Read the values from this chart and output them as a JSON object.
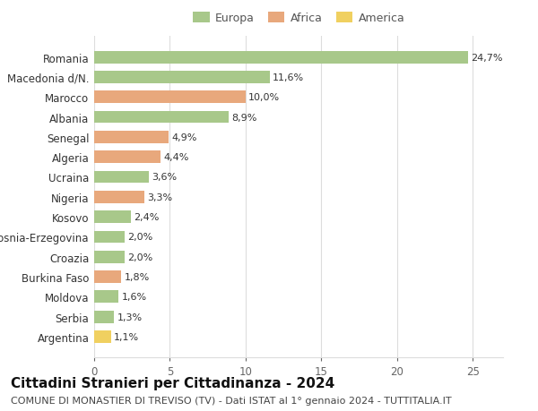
{
  "countries": [
    "Romania",
    "Macedonia d/N.",
    "Marocco",
    "Albania",
    "Senegal",
    "Algeria",
    "Ucraina",
    "Nigeria",
    "Kosovo",
    "Bosnia-Erzegovina",
    "Croazia",
    "Burkina Faso",
    "Moldova",
    "Serbia",
    "Argentina"
  ],
  "values": [
    24.7,
    11.6,
    10.0,
    8.9,
    4.9,
    4.4,
    3.6,
    3.3,
    2.4,
    2.0,
    2.0,
    1.8,
    1.6,
    1.3,
    1.1
  ],
  "labels": [
    "24,7%",
    "11,6%",
    "10,0%",
    "8,9%",
    "4,9%",
    "4,4%",
    "3,6%",
    "3,3%",
    "2,4%",
    "2,0%",
    "2,0%",
    "1,8%",
    "1,6%",
    "1,3%",
    "1,1%"
  ],
  "continent": [
    "Europa",
    "Europa",
    "Africa",
    "Europa",
    "Africa",
    "Africa",
    "Europa",
    "Africa",
    "Europa",
    "Europa",
    "Europa",
    "Africa",
    "Europa",
    "Europa",
    "America"
  ],
  "colors": {
    "Europa": "#a8c88a",
    "Africa": "#e8a87c",
    "America": "#f0d060"
  },
  "legend_colors": {
    "Europa": "#a8c88a",
    "Africa": "#e8a87c",
    "America": "#f0d060"
  },
  "title": "Cittadini Stranieri per Cittadinanza - 2024",
  "subtitle": "COMUNE DI MONASTIER DI TREVISO (TV) - Dati ISTAT al 1° gennaio 2024 - TUTTITALIA.IT",
  "xlim": [
    0,
    27
  ],
  "xticks": [
    0,
    5,
    10,
    15,
    20,
    25
  ],
  "background_color": "#ffffff",
  "grid_color": "#dddddd",
  "title_fontsize": 11,
  "subtitle_fontsize": 8,
  "tick_fontsize": 8.5,
  "label_fontsize": 8,
  "legend_fontsize": 9
}
